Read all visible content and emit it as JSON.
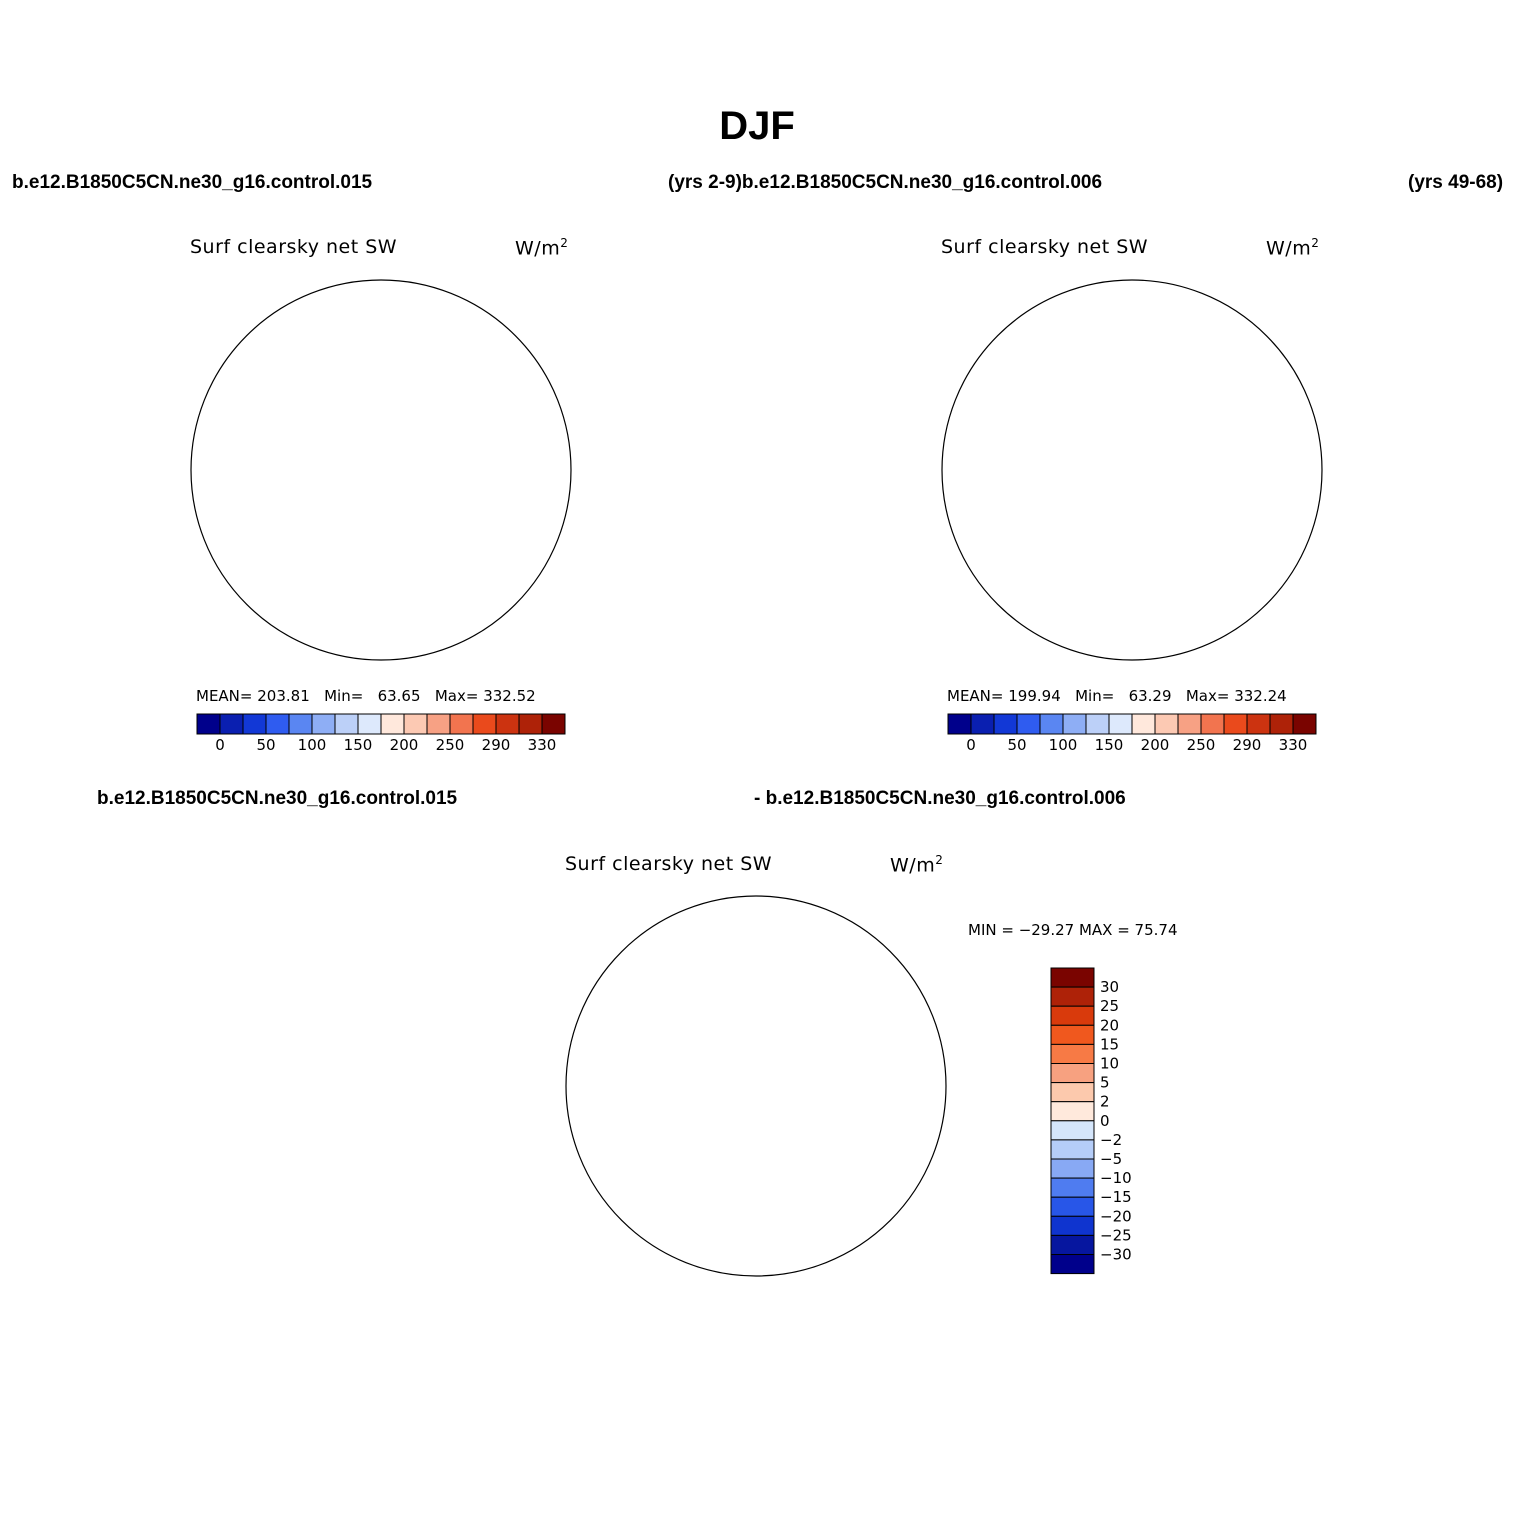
{
  "title": "DJF",
  "headers": {
    "top_left_case": "b.e12.B1850C5CN.ne30_g16.control.015",
    "top_mid": "(yrs 2-9)b.e12.B1850C5CN.ne30_g16.control.006",
    "top_right": "(yrs 49-68)",
    "bottom_left_case": "b.e12.B1850C5CN.ne30_g16.control.015",
    "bottom_mid": "- b.e12.B1850C5CN.ne30_g16.control.006"
  },
  "panels": [
    {
      "variable": "Surf clearsky net SW",
      "units": "W/m",
      "units_sup": "2",
      "mean_label": "MEAN=",
      "mean": "203.81",
      "min_label": "Min=",
      "min": "63.65",
      "max_label": "Max=",
      "max": "332.52"
    },
    {
      "variable": "Surf clearsky net SW",
      "units": "W/m",
      "units_sup": "2",
      "mean_label": "MEAN=",
      "mean": "199.94",
      "min_label": "Min=",
      "min": "63.29",
      "max_label": "Max=",
      "max": "332.24"
    },
    {
      "variable": "Surf clearsky net SW",
      "units": "W/m",
      "units_sup": "2",
      "minmax": "MIN = −29.27 MAX =  75.74"
    }
  ],
  "colorbar_abs": {
    "colors": [
      "#00008b",
      "#0a1fb0",
      "#1238d6",
      "#2f5cf0",
      "#5a86f2",
      "#8eaef5",
      "#bcd0f8",
      "#dde9fc",
      "#ffe8dc",
      "#fcc9b3",
      "#f7a184",
      "#f2744f",
      "#ea4a1c",
      "#cc3310",
      "#ae2208",
      "#7a0400"
    ],
    "labels": [
      "0",
      "50",
      "100",
      "150",
      "200",
      "250",
      "290",
      "330"
    ]
  },
  "colorbar_diff": {
    "colors": [
      "#7a0400",
      "#ae2208",
      "#d93a0c",
      "#f0581e",
      "#f77a45",
      "#f7a180",
      "#fcc9ad",
      "#ffe9dc",
      "#d5e6fb",
      "#b5cdf8",
      "#88a9f4",
      "#4f7cf0",
      "#2856e8",
      "#0f34cf",
      "#06169f",
      "#00008b"
    ],
    "labels": [
      "30",
      "25",
      "20",
      "15",
      "10",
      "5",
      "2",
      "0",
      "−2",
      "−5",
      "−10",
      "−15",
      "−20",
      "−25",
      "−30"
    ]
  }
}
